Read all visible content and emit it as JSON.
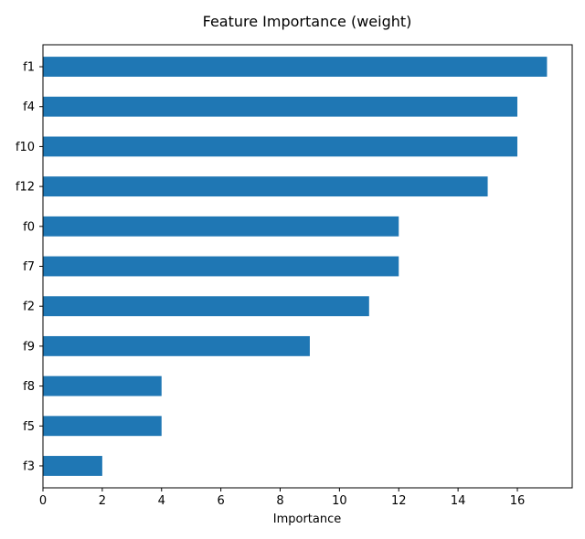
{
  "chart_data": {
    "type": "bar",
    "orientation": "horizontal",
    "title": "Feature Importance (weight)",
    "xlabel": "Importance",
    "ylabel": "",
    "categories": [
      "f1",
      "f4",
      "f10",
      "f12",
      "f0",
      "f7",
      "f2",
      "f9",
      "f8",
      "f5",
      "f3"
    ],
    "values": [
      17,
      16,
      16,
      15,
      12,
      12,
      11,
      9,
      4,
      4,
      2
    ],
    "xlim": [
      0,
      17.85
    ],
    "xticks": [
      0,
      2,
      4,
      6,
      8,
      10,
      12,
      14,
      16
    ],
    "grid": false,
    "legend": "none",
    "bar_color": "#1f77b4"
  }
}
